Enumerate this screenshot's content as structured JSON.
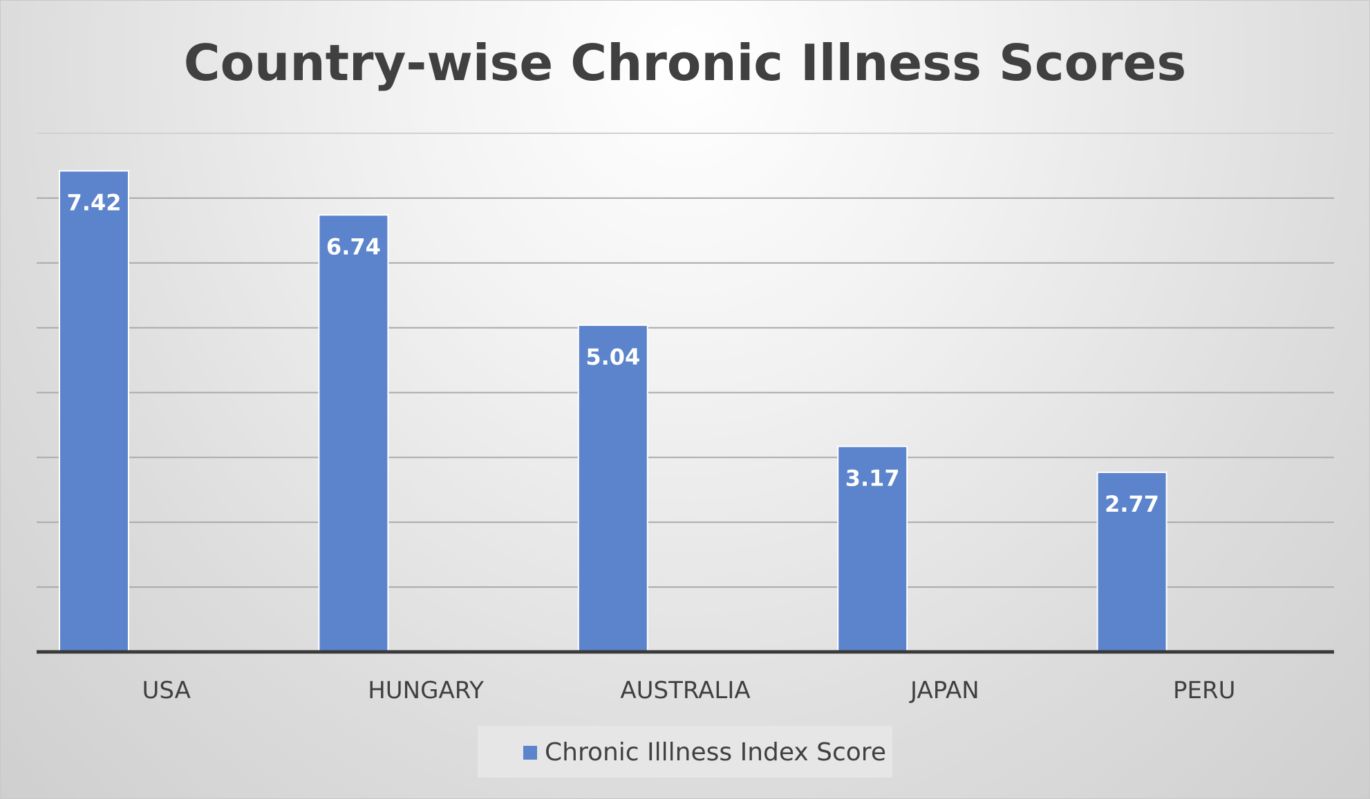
{
  "chart_data": {
    "type": "bar",
    "title": "Country-wise Chronic Illness Scores",
    "categories": [
      "USA",
      "HUNGARY",
      "AUSTRALIA",
      "JAPAN",
      "PERU"
    ],
    "series": [
      {
        "name": "Chronic Illlness Index Score",
        "values": [
          7.42,
          6.74,
          5.04,
          3.17,
          2.77
        ],
        "color": "#5b84cc"
      }
    ],
    "data_labels": [
      "7.42",
      "6.74",
      "5.04",
      "3.17",
      "2.77"
    ],
    "ylim": [
      0,
      8
    ],
    "grid": true,
    "legend_position": "bottom"
  }
}
